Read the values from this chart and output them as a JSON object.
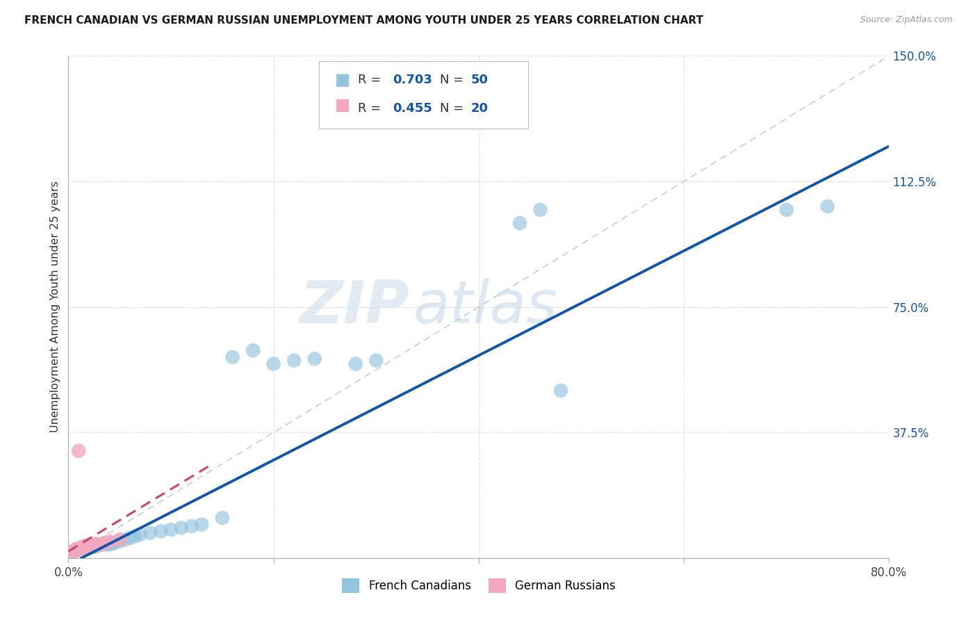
{
  "title": "FRENCH CANADIAN VS GERMAN RUSSIAN UNEMPLOYMENT AMONG YOUTH UNDER 25 YEARS CORRELATION CHART",
  "source": "Source: ZipAtlas.com",
  "ylabel": "Unemployment Among Youth under 25 years",
  "xlim": [
    0.0,
    0.8
  ],
  "ylim": [
    0.0,
    1.5
  ],
  "xtick_vals": [
    0.0,
    0.2,
    0.4,
    0.6,
    0.8
  ],
  "xtick_labels": [
    "0.0%",
    "",
    "",
    "",
    "80.0%"
  ],
  "ytick_vals": [
    0.0,
    0.375,
    0.75,
    1.125,
    1.5
  ],
  "ytick_labels": [
    "",
    "37.5%",
    "75.0%",
    "112.5%",
    "150.0%"
  ],
  "blue_fill": "#93c4de",
  "pink_fill": "#f4a8bf",
  "blue_line": "#1155aa",
  "pink_line": "#cc4466",
  "ref_line": "#cccccc",
  "grid_color": "#dddddd",
  "bg_color": "#ffffff",
  "watermark_ZIP": "ZIP",
  "watermark_atlas": "atlas",
  "legend_R1": "0.703",
  "legend_N1": "50",
  "legend_R2": "0.455",
  "legend_N2": "20",
  "fc_x": [
    0.005,
    0.007,
    0.008,
    0.01,
    0.01,
    0.012,
    0.013,
    0.015,
    0.015,
    0.017,
    0.018,
    0.02,
    0.02,
    0.022,
    0.023,
    0.025,
    0.025,
    0.027,
    0.028,
    0.03,
    0.032,
    0.035,
    0.038,
    0.04,
    0.042,
    0.045,
    0.05,
    0.055,
    0.06,
    0.065,
    0.07,
    0.08,
    0.09,
    0.1,
    0.11,
    0.12,
    0.13,
    0.15,
    0.16,
    0.18,
    0.2,
    0.22,
    0.24,
    0.28,
    0.3,
    0.44,
    0.46,
    0.48,
    0.7,
    0.74
  ],
  "fc_y": [
    0.02,
    0.025,
    0.022,
    0.025,
    0.028,
    0.027,
    0.03,
    0.028,
    0.032,
    0.03,
    0.033,
    0.03,
    0.035,
    0.032,
    0.035,
    0.033,
    0.038,
    0.035,
    0.04,
    0.038,
    0.04,
    0.042,
    0.04,
    0.045,
    0.042,
    0.045,
    0.05,
    0.055,
    0.06,
    0.065,
    0.07,
    0.075,
    0.08,
    0.085,
    0.09,
    0.095,
    0.1,
    0.12,
    0.6,
    0.62,
    0.58,
    0.59,
    0.595,
    0.58,
    0.59,
    1.0,
    1.04,
    0.5,
    1.04,
    1.05
  ],
  "gr_x": [
    0.005,
    0.006,
    0.007,
    0.008,
    0.01,
    0.01,
    0.012,
    0.013,
    0.015,
    0.015,
    0.018,
    0.02,
    0.022,
    0.025,
    0.028,
    0.03,
    0.035,
    0.04,
    0.05,
    0.01
  ],
  "gr_y": [
    0.02,
    0.022,
    0.025,
    0.027,
    0.025,
    0.028,
    0.03,
    0.032,
    0.03,
    0.035,
    0.038,
    0.035,
    0.04,
    0.038,
    0.042,
    0.04,
    0.045,
    0.05,
    0.055,
    0.32
  ]
}
